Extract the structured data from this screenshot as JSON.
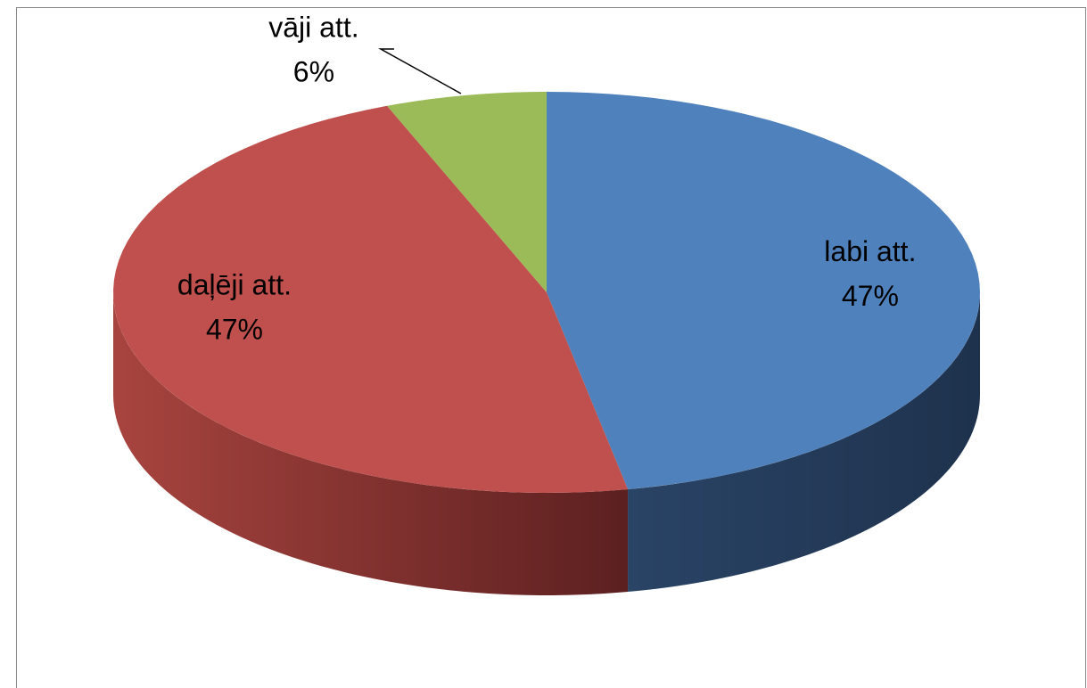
{
  "chart_data": {
    "type": "pie",
    "categories": [
      "labi att.",
      "daļēji att.",
      "vāji att."
    ],
    "values": [
      47,
      47,
      6
    ],
    "value_labels": [
      "47%",
      "47%",
      "6%"
    ],
    "colors": [
      "#4f81bd",
      "#c0504d",
      "#9bbb59"
    ]
  }
}
